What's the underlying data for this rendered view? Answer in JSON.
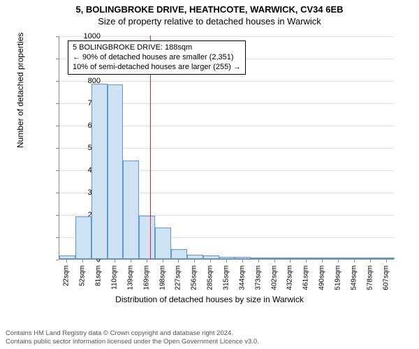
{
  "titles": {
    "main": "5, BOLINGBROKE DRIVE, HEATHCOTE, WARWICK, CV34 6EB",
    "sub": "Size of property relative to detached houses in Warwick"
  },
  "chart": {
    "type": "histogram",
    "ylabel": "Number of detached properties",
    "xlabel": "Distribution of detached houses by size in Warwick",
    "ylim": [
      0,
      1000
    ],
    "ytick_step": 100,
    "xticks": [
      "22sqm",
      "52sqm",
      "81sqm",
      "110sqm",
      "139sqm",
      "169sqm",
      "198sqm",
      "227sqm",
      "256sqm",
      "285sqm",
      "315sqm",
      "344sqm",
      "373sqm",
      "402sqm",
      "432sqm",
      "461sqm",
      "490sqm",
      "519sqm",
      "549sqm",
      "578sqm",
      "607sqm"
    ],
    "bars": [
      15,
      190,
      785,
      780,
      440,
      195,
      140,
      45,
      20,
      15,
      8,
      8,
      6,
      4,
      3,
      3,
      2,
      2,
      2,
      1,
      1
    ],
    "bar_fill": "#cfe2f3",
    "bar_stroke": "#5a9bd4",
    "grid_color": "#e0e0e0",
    "axis_color": "#888888",
    "vline": {
      "x_index_after": 5,
      "fraction": 0.67,
      "color": "#d62728"
    }
  },
  "annotation": {
    "line1": "5 BOLINGBROKE DRIVE: 188sqm",
    "line2": "← 90% of detached houses are smaller (2,351)",
    "line3": "10% of semi-detached houses are larger (255) →"
  },
  "footer": {
    "line1": "Contains HM Land Registry data © Crown copyright and database right 2024.",
    "line2": "Contains public sector information licensed under the Open Government Licence v3.0."
  }
}
